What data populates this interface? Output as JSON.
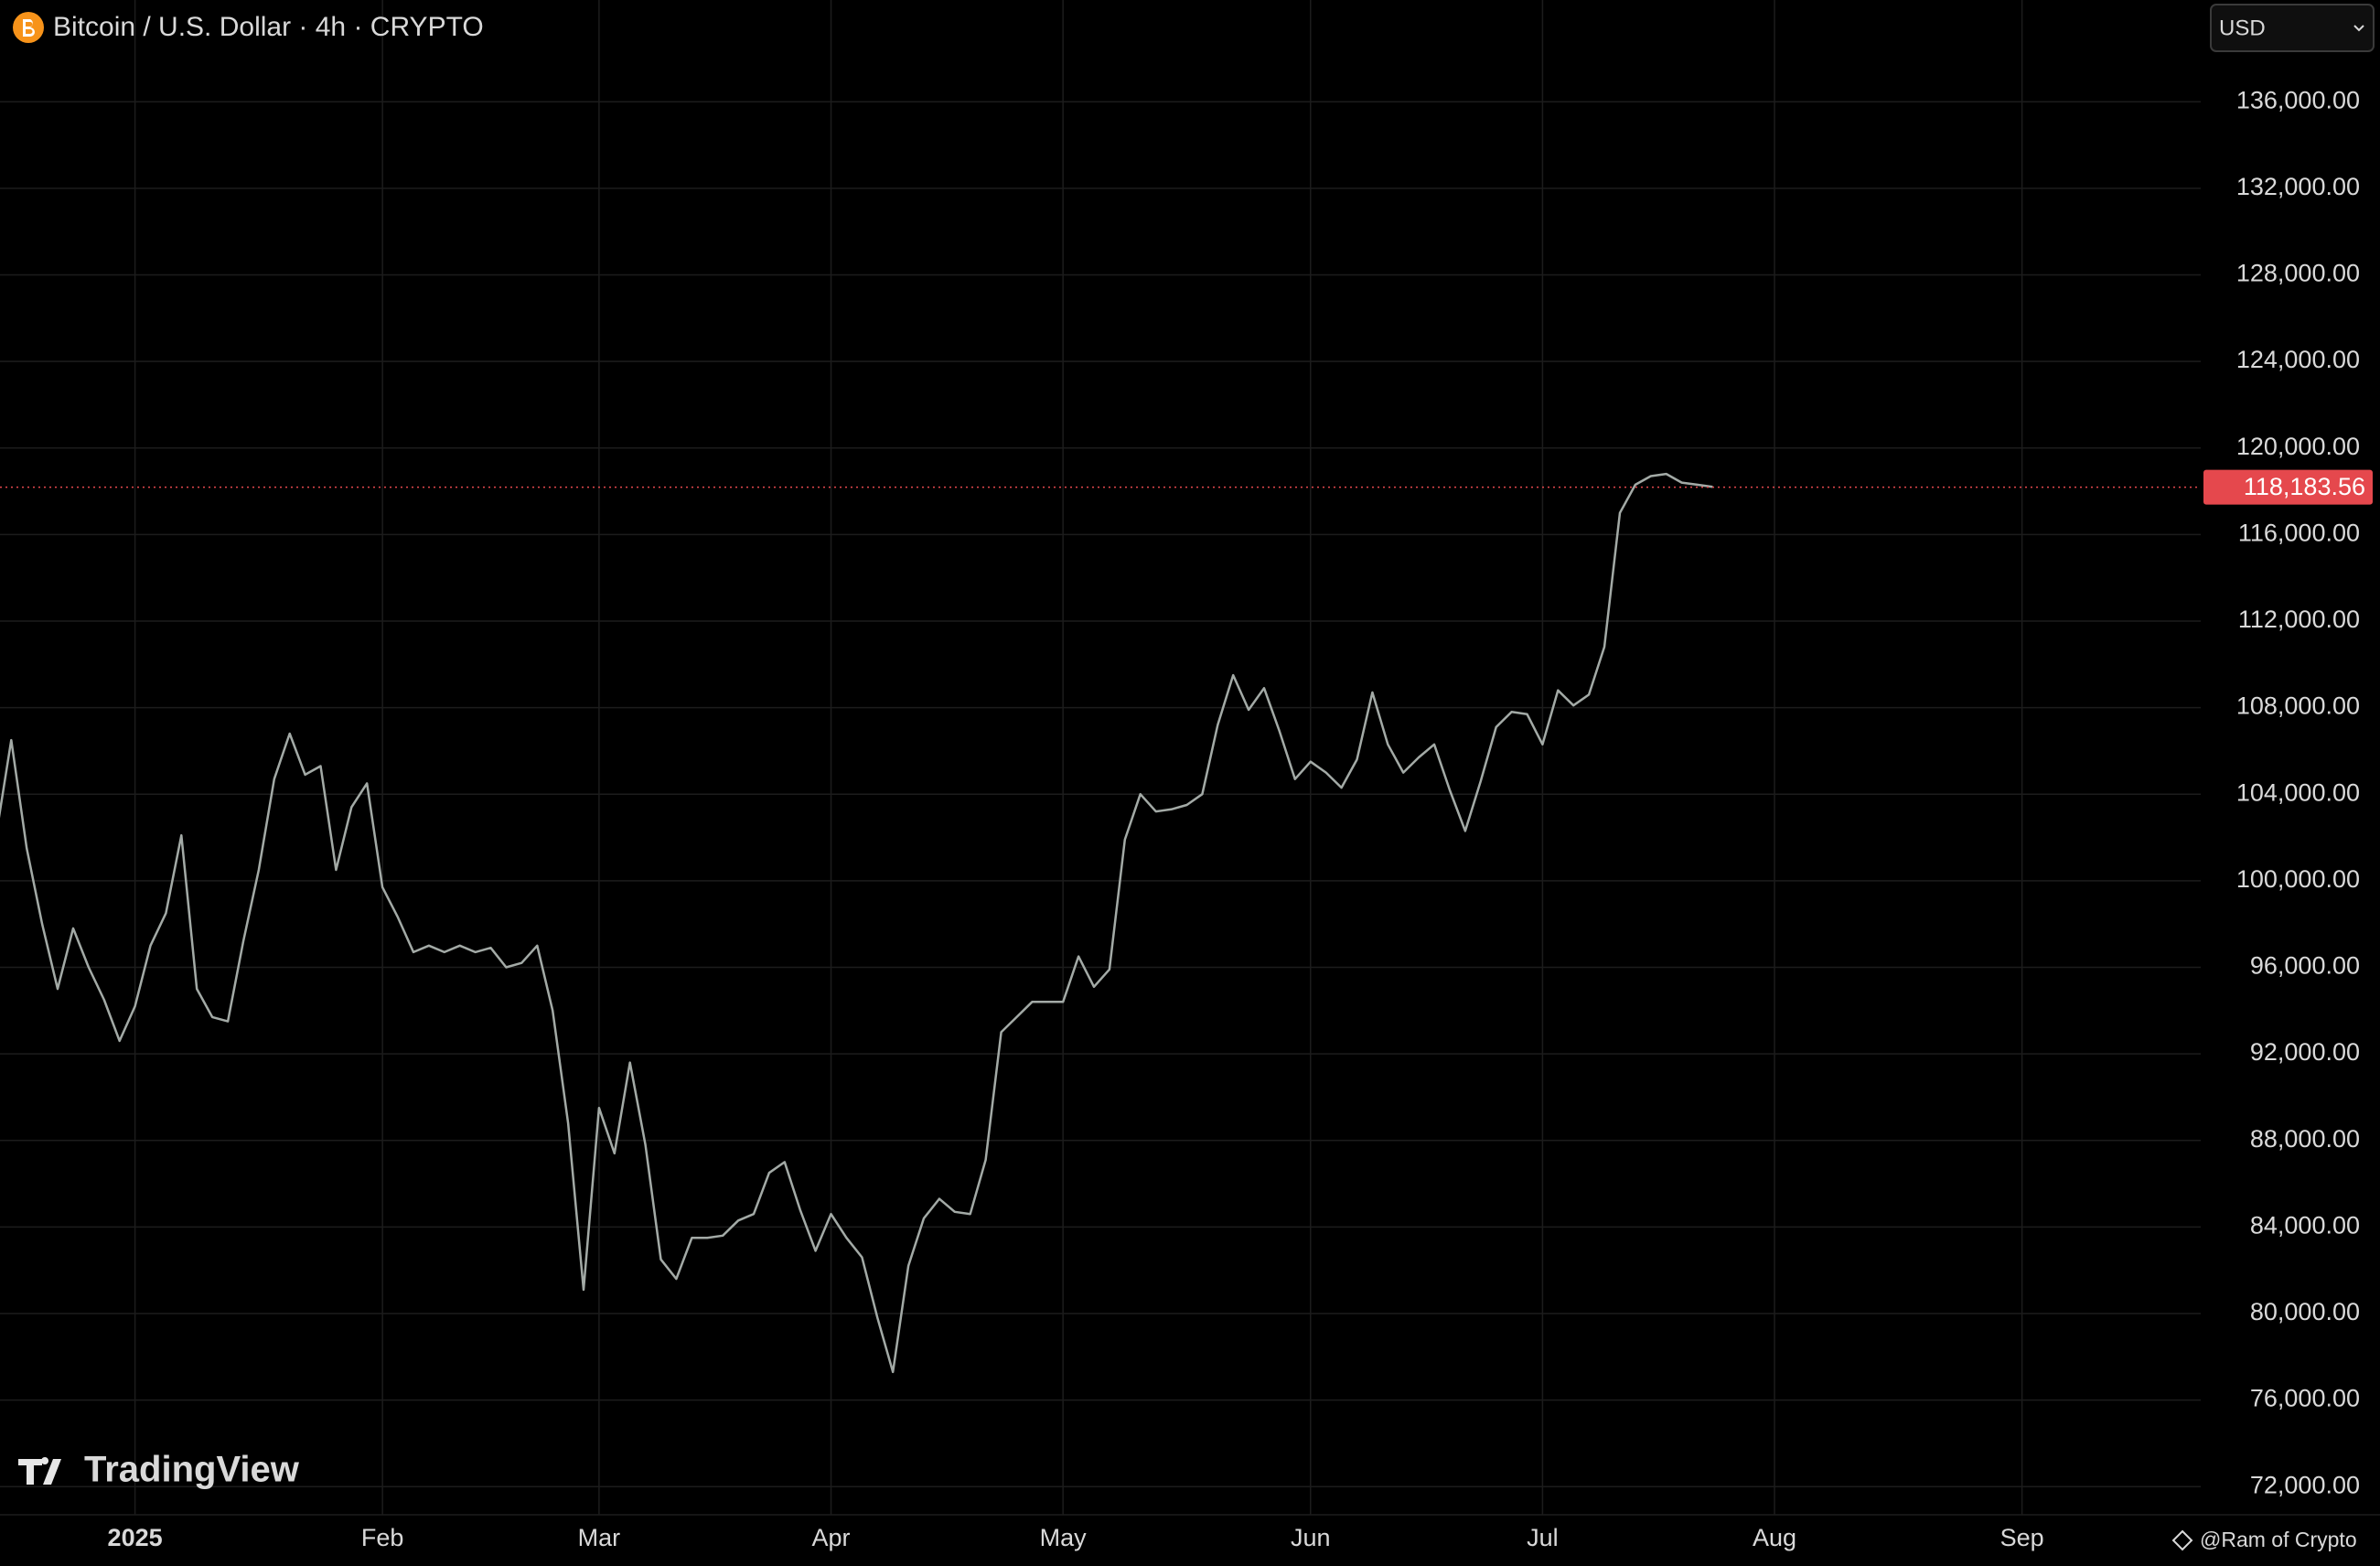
{
  "chart_data": {
    "type": "line",
    "title": "Bitcoin / U.S. Dollar · 4h · CRYPTO",
    "currency_selector": "USD",
    "watermark": "TradingView",
    "credit": "@Ram of Crypto",
    "categories": [
      null,
      null,
      null,
      null,
      null,
      null,
      null,
      null,
      null,
      "2025",
      null,
      null,
      null,
      null,
      null,
      null,
      null,
      null,
      null,
      null,
      null,
      null,
      null,
      null,
      null,
      "Feb",
      null,
      null,
      null,
      null,
      null,
      null,
      null,
      null,
      null,
      null,
      null,
      null,
      null,
      "Mar",
      null,
      null,
      null,
      null,
      null,
      null,
      null,
      null,
      null,
      null,
      null,
      null,
      null,
      null,
      "Apr",
      null,
      null,
      null,
      null,
      null,
      null,
      null,
      null,
      null,
      null,
      null,
      null,
      null,
      null,
      "May",
      null,
      null,
      null,
      null,
      null,
      null,
      null,
      null,
      null,
      null,
      null,
      null,
      null,
      null,
      null,
      "Jun",
      null,
      null,
      null,
      null,
      null,
      null,
      null,
      null,
      null,
      null,
      null,
      null,
      null,
      null,
      "Jul",
      null,
      null,
      null,
      null,
      null,
      null,
      null,
      null,
      null,
      null,
      null,
      null,
      null,
      null,
      "Aug",
      null,
      null,
      null,
      null,
      null,
      null,
      null,
      null,
      null,
      null,
      null,
      null,
      null,
      null,
      null,
      "Sep",
      null,
      null,
      null,
      null,
      null,
      null,
      null,
      null,
      null,
      null,
      null
    ],
    "series": [
      {
        "name": "Bitcoin / U.S. Dollar",
        "color": "#a3aaa6",
        "values": [
          102000,
          106500,
          101500,
          98000,
          95000,
          97800,
          96000,
          94500,
          92600,
          94200,
          97000,
          98500,
          102100,
          95000,
          93700,
          93500,
          97200,
          100500,
          104700,
          106800,
          104900,
          105300,
          100500,
          103400,
          104500,
          99700,
          98300,
          96700,
          97000,
          96700,
          97000,
          96700,
          96900,
          96000,
          96200,
          97000,
          94000,
          88800,
          81100,
          89500,
          87400,
          91600,
          87800,
          82500,
          81600,
          83500,
          83500,
          83600,
          84300,
          84600,
          86500,
          87000,
          84800,
          82900,
          84600,
          83500,
          82600,
          79800,
          77300,
          82200,
          84400,
          85300,
          84700,
          84600,
          87100,
          93000,
          93700,
          94400,
          94400,
          94400,
          96500,
          95100,
          95900,
          101900,
          104000,
          103200,
          103300,
          103500,
          104000,
          107200,
          109500,
          107900,
          108900,
          106900,
          104700,
          105500,
          105000,
          104300,
          105600,
          108700,
          106300,
          105000,
          105700,
          106300,
          104200,
          102300,
          104600,
          107100,
          107800,
          107700,
          106300,
          108800,
          108100,
          108600,
          110800,
          117000,
          118300,
          118700,
          118800,
          118400,
          118300,
          118200,
          null,
          null,
          null,
          null,
          null,
          null,
          null,
          null,
          null,
          null,
          null,
          null,
          null,
          null,
          null,
          null,
          null,
          null,
          null,
          null,
          null,
          null,
          null,
          null,
          null,
          null,
          null,
          null,
          null,
          null,
          null
        ]
      }
    ],
    "last_price": {
      "value": 118183.56,
      "label": "118,183.56",
      "color": "#e5484d"
    },
    "ylim": [
      70700,
      140700
    ],
    "yticks": [
      {
        "value": 72000,
        "label": "72,000.00"
      },
      {
        "value": 76000,
        "label": "76,000.00"
      },
      {
        "value": 80000,
        "label": "80,000.00"
      },
      {
        "value": 84000,
        "label": "84,000.00"
      },
      {
        "value": 88000,
        "label": "88,000.00"
      },
      {
        "value": 92000,
        "label": "92,000.00"
      },
      {
        "value": 96000,
        "label": "96,000.00"
      },
      {
        "value": 100000,
        "label": "100,000.00"
      },
      {
        "value": 104000,
        "label": "104,000.00"
      },
      {
        "value": 108000,
        "label": "108,000.00"
      },
      {
        "value": 112000,
        "label": "112,000.00"
      },
      {
        "value": 116000,
        "label": "116,000.00"
      },
      {
        "value": 120000,
        "label": "120,000.00"
      },
      {
        "value": 124000,
        "label": "124,000.00"
      },
      {
        "value": 128000,
        "label": "128,000.00"
      },
      {
        "value": 132000,
        "label": "132,000.00"
      },
      {
        "value": 136000,
        "label": "136,000.00"
      }
    ],
    "grid": true
  }
}
